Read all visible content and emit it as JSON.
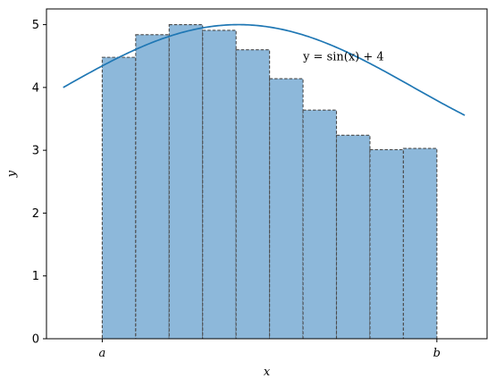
{
  "chart_data": {
    "type": "bar",
    "title": "",
    "xlabel": "x",
    "ylabel": "y",
    "ylim": [
      0,
      5.25
    ],
    "xlim": [
      -0.15,
      3.8
    ],
    "yticks": [
      0,
      1,
      2,
      3,
      4,
      5
    ],
    "xtick_labels": [
      {
        "x": 0.35,
        "label": "a"
      },
      {
        "x": 3.35,
        "label": "b"
      }
    ],
    "grid": false,
    "curve": {
      "expression": "sin(x) + 4",
      "x_range": [
        0,
        3.6
      ],
      "color": "#1f77b4"
    },
    "bars": {
      "width": 0.3,
      "fill": "#8db8da",
      "edge": "#4a4a4a",
      "edge_style": "dashed",
      "lefts": [
        0.35,
        0.65,
        0.95,
        1.25,
        1.55,
        1.85,
        2.15,
        2.45,
        2.75,
        3.05
      ],
      "values": [
        4.48,
        4.84,
        5.0,
        4.91,
        4.6,
        4.14,
        3.64,
        3.24,
        3.01,
        3.03
      ]
    },
    "annotation": {
      "text": "y = sin(x) + 4",
      "x": 2.15,
      "y": 4.5
    }
  }
}
